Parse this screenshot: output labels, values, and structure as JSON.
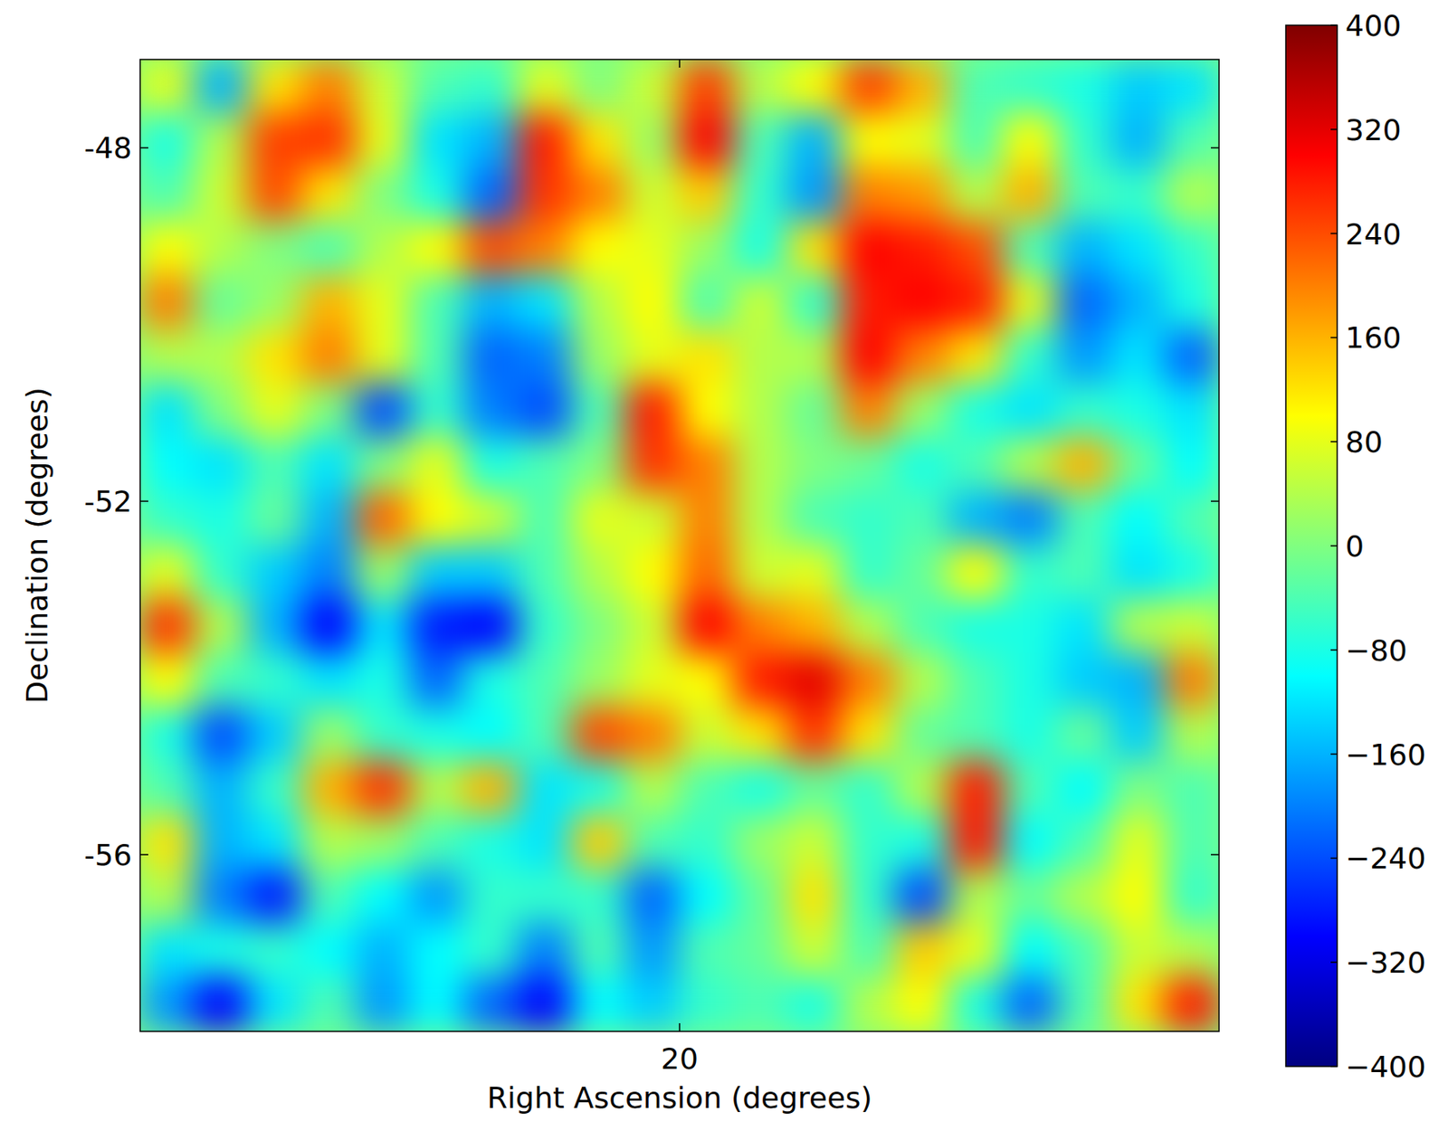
{
  "chart_data": {
    "type": "heatmap",
    "x_label": "Right Ascension (degrees)",
    "y_label": "Declination (degrees)",
    "xlim": [
      30,
      10
    ],
    "ylim": [
      -58,
      -47
    ],
    "xticks": [
      20
    ],
    "yticks": [
      -56,
      -52,
      -48
    ],
    "color": "jet",
    "colorbar_range": [
      -400,
      400
    ],
    "colorbar_ticks": [
      {
        "value": -400,
        "label": "−400"
      },
      {
        "value": -320,
        "label": "−320"
      },
      {
        "value": -240,
        "label": "−240"
      },
      {
        "value": -160,
        "label": "−160"
      },
      {
        "value": -80,
        "label": "−80"
      },
      0,
      80,
      160,
      240,
      320,
      400
    ],
    "cells": [
      [
        80,
        -160,
        120,
        200,
        60,
        -40,
        -60,
        80,
        0,
        60,
        250,
        40,
        100,
        250,
        160,
        -40,
        -60,
        -80,
        -140,
        -120
      ],
      [
        -80,
        40,
        250,
        260,
        80,
        -120,
        -160,
        280,
        120,
        20,
        300,
        -40,
        -160,
        100,
        80,
        -40,
        100,
        -60,
        -160,
        -40
      ],
      [
        -40,
        60,
        240,
        120,
        0,
        -80,
        -220,
        260,
        200,
        60,
        140,
        -60,
        -180,
        200,
        180,
        40,
        160,
        -40,
        -60,
        40
      ],
      [
        100,
        40,
        0,
        -40,
        40,
        100,
        240,
        200,
        100,
        80,
        20,
        -80,
        120,
        300,
        280,
        240,
        -40,
        -160,
        -120,
        -60
      ],
      [
        200,
        -20,
        20,
        160,
        80,
        -40,
        -160,
        -120,
        40,
        100,
        -40,
        60,
        -60,
        280,
        300,
        280,
        80,
        -220,
        -160,
        -80
      ],
      [
        40,
        40,
        120,
        200,
        80,
        -40,
        -220,
        -200,
        20,
        80,
        120,
        40,
        40,
        300,
        200,
        120,
        -60,
        -180,
        -120,
        -220
      ],
      [
        -120,
        0,
        80,
        0,
        -240,
        -60,
        -200,
        -240,
        -40,
        280,
        100,
        40,
        -20,
        200,
        20,
        -80,
        -120,
        -60,
        -80,
        -120
      ],
      [
        -100,
        -120,
        -40,
        -120,
        0,
        80,
        -80,
        -40,
        0,
        260,
        200,
        40,
        0,
        -20,
        -80,
        -40,
        40,
        160,
        -20,
        -100
      ],
      [
        -60,
        -80,
        -20,
        -160,
        220,
        100,
        60,
        -40,
        80,
        60,
        200,
        40,
        -40,
        -60,
        -40,
        -160,
        -200,
        -40,
        -100,
        -40
      ],
      [
        80,
        -60,
        -140,
        -200,
        20,
        -140,
        -140,
        -40,
        40,
        100,
        220,
        60,
        80,
        -60,
        -20,
        100,
        -60,
        -40,
        -120,
        -80
      ],
      [
        260,
        40,
        -160,
        -300,
        -120,
        -280,
        -300,
        -60,
        0,
        60,
        300,
        200,
        160,
        40,
        -40,
        -80,
        -80,
        -120,
        40,
        60
      ],
      [
        100,
        -40,
        -60,
        -120,
        -80,
        -220,
        -80,
        -40,
        20,
        80,
        100,
        280,
        320,
        200,
        40,
        -40,
        -80,
        -140,
        -160,
        200
      ],
      [
        -80,
        -240,
        -140,
        20,
        -60,
        -80,
        -100,
        -40,
        240,
        200,
        60,
        120,
        260,
        120,
        -20,
        -40,
        -80,
        -20,
        -140,
        40
      ],
      [
        -40,
        -160,
        -60,
        160,
        260,
        40,
        160,
        -120,
        -80,
        40,
        -40,
        -80,
        -20,
        -60,
        40,
        280,
        -40,
        -100,
        0,
        -40
      ],
      [
        120,
        -160,
        -120,
        40,
        20,
        -40,
        -80,
        -120,
        140,
        -40,
        -60,
        20,
        60,
        -60,
        -80,
        280,
        -100,
        -40,
        80,
        -40
      ],
      [
        40,
        -200,
        -280,
        -40,
        -100,
        -180,
        -60,
        -60,
        -60,
        -220,
        -100,
        -20,
        120,
        -60,
        -240,
        40,
        -20,
        40,
        100,
        -60
      ],
      [
        -120,
        -80,
        -60,
        -100,
        -160,
        -100,
        -60,
        -200,
        -40,
        -180,
        -40,
        -20,
        60,
        -40,
        140,
        80,
        -100,
        -40,
        60,
        40
      ],
      [
        -180,
        -300,
        -120,
        -40,
        -180,
        -100,
        -220,
        -300,
        -100,
        -140,
        -60,
        -40,
        -80,
        40,
        100,
        -80,
        -220,
        -40,
        120,
        280
      ]
    ]
  }
}
